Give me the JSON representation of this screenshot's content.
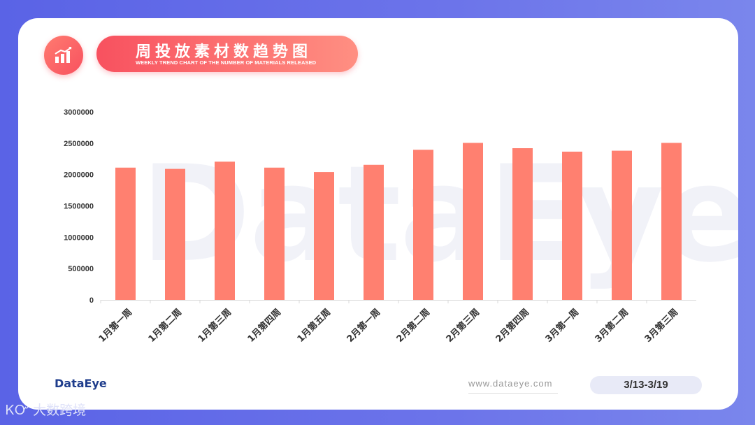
{
  "header": {
    "title": "周投放素材数趋势图",
    "subtitle": "WEEKLY TREND CHART OF THE NUMBER OF MATERIALS RELEASED",
    "icon": "bar-chart-trend-icon"
  },
  "watermark": "DataEye",
  "chart_data": {
    "type": "bar",
    "categories": [
      "1月第一周",
      "1月第二周",
      "1月第三周",
      "1月第四周",
      "1月第五周",
      "2月第一周",
      "2月第二周",
      "2月第三周",
      "2月第四周",
      "3月第一周",
      "3月第二周",
      "3月第三周"
    ],
    "values": [
      2110000,
      2090000,
      2205000,
      2110000,
      2040000,
      2155000,
      2395000,
      2505000,
      2420000,
      2365000,
      2380000,
      2505000
    ],
    "ylim": [
      0,
      3000000
    ],
    "yticks": [
      0,
      500000,
      1000000,
      1500000,
      2000000,
      2500000,
      3000000
    ],
    "ytick_labels": [
      "0",
      "500000",
      "1000000",
      "1500000",
      "2000000",
      "2500000",
      "3000000"
    ],
    "bar_color": "#ff8070",
    "grid": false
  },
  "footer": {
    "logo": "DataEye",
    "url": "www.dataeye.com",
    "date_range": "3/13-3/19"
  },
  "brand": "大数跨境",
  "colors": {
    "accent": "#f8515f",
    "background": "#5a63e6"
  }
}
